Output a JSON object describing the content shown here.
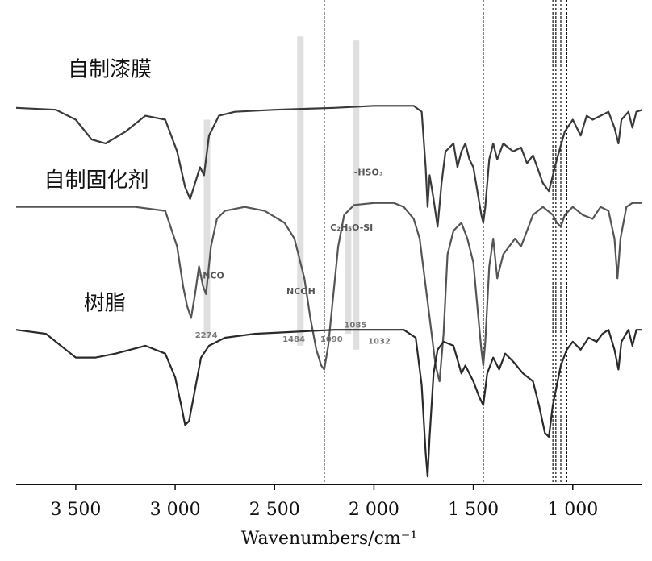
{
  "chart_data": {
    "type": "line",
    "title": "",
    "xlabel": "Wavenumbers/cm⁻¹",
    "ylabel": "",
    "xlim": [
      3800,
      650
    ],
    "x_reversed": true,
    "y_axis_visible": false,
    "grid": false,
    "legend": "inline-labels",
    "x_ticks": [
      {
        "value": 3500,
        "label": "3 500"
      },
      {
        "value": 3000,
        "label": "3 000"
      },
      {
        "value": 2500,
        "label": "2 500"
      },
      {
        "value": 2000,
        "label": "2 000"
      },
      {
        "value": 1500,
        "label": "1 500"
      },
      {
        "value": 1000,
        "label": "1 000"
      }
    ],
    "series": [
      {
        "name": "自制漆膜",
        "color": "#3a3a3a",
        "points": [
          [
            3800,
            0.95
          ],
          [
            3600,
            0.945
          ],
          [
            3500,
            0.92
          ],
          [
            3420,
            0.87
          ],
          [
            3350,
            0.86
          ],
          [
            3250,
            0.89
          ],
          [
            3150,
            0.93
          ],
          [
            3050,
            0.92
          ],
          [
            2990,
            0.84
          ],
          [
            2950,
            0.75
          ],
          [
            2925,
            0.72
          ],
          [
            2900,
            0.76
          ],
          [
            2875,
            0.8
          ],
          [
            2855,
            0.78
          ],
          [
            2830,
            0.88
          ],
          [
            2780,
            0.93
          ],
          [
            2700,
            0.94
          ],
          [
            2500,
            0.945
          ],
          [
            2200,
            0.95
          ],
          [
            2000,
            0.955
          ],
          [
            1800,
            0.955
          ],
          [
            1760,
            0.94
          ],
          [
            1740,
            0.8
          ],
          [
            1730,
            0.7
          ],
          [
            1720,
            0.78
          ],
          [
            1700,
            0.72
          ],
          [
            1680,
            0.65
          ],
          [
            1660,
            0.76
          ],
          [
            1640,
            0.84
          ],
          [
            1600,
            0.86
          ],
          [
            1580,
            0.8
          ],
          [
            1560,
            0.84
          ],
          [
            1540,
            0.86
          ],
          [
            1520,
            0.82
          ],
          [
            1500,
            0.8
          ],
          [
            1460,
            0.68
          ],
          [
            1450,
            0.66
          ],
          [
            1440,
            0.7
          ],
          [
            1420,
            0.82
          ],
          [
            1400,
            0.86
          ],
          [
            1380,
            0.82
          ],
          [
            1350,
            0.86
          ],
          [
            1300,
            0.84
          ],
          [
            1260,
            0.85
          ],
          [
            1230,
            0.81
          ],
          [
            1200,
            0.83
          ],
          [
            1150,
            0.76
          ],
          [
            1120,
            0.74
          ],
          [
            1080,
            0.82
          ],
          [
            1040,
            0.89
          ],
          [
            1000,
            0.92
          ],
          [
            960,
            0.88
          ],
          [
            930,
            0.93
          ],
          [
            900,
            0.92
          ],
          [
            860,
            0.93
          ],
          [
            820,
            0.94
          ],
          [
            790,
            0.9
          ],
          [
            770,
            0.86
          ],
          [
            755,
            0.92
          ],
          [
            720,
            0.94
          ],
          [
            700,
            0.9
          ],
          [
            680,
            0.94
          ],
          [
            650,
            0.945
          ]
        ]
      },
      {
        "name": "自制固化剂",
        "color": "#555555",
        "points": [
          [
            3800,
            0.7
          ],
          [
            3500,
            0.7
          ],
          [
            3200,
            0.7
          ],
          [
            3050,
            0.69
          ],
          [
            2990,
            0.6
          ],
          [
            2960,
            0.5
          ],
          [
            2940,
            0.45
          ],
          [
            2920,
            0.42
          ],
          [
            2900,
            0.48
          ],
          [
            2880,
            0.55
          ],
          [
            2860,
            0.5
          ],
          [
            2845,
            0.48
          ],
          [
            2820,
            0.6
          ],
          [
            2790,
            0.67
          ],
          [
            2750,
            0.69
          ],
          [
            2650,
            0.7
          ],
          [
            2550,
            0.69
          ],
          [
            2450,
            0.66
          ],
          [
            2400,
            0.62
          ],
          [
            2350,
            0.52
          ],
          [
            2320,
            0.42
          ],
          [
            2290,
            0.34
          ],
          [
            2265,
            0.3
          ],
          [
            2250,
            0.29
          ],
          [
            2230,
            0.35
          ],
          [
            2210,
            0.45
          ],
          [
            2180,
            0.6
          ],
          [
            2150,
            0.68
          ],
          [
            2100,
            0.705
          ],
          [
            2000,
            0.71
          ],
          [
            1900,
            0.71
          ],
          [
            1850,
            0.7
          ],
          [
            1800,
            0.67
          ],
          [
            1770,
            0.62
          ],
          [
            1740,
            0.5
          ],
          [
            1710,
            0.38
          ],
          [
            1690,
            0.3
          ],
          [
            1670,
            0.26
          ],
          [
            1650,
            0.38
          ],
          [
            1630,
            0.58
          ],
          [
            1600,
            0.64
          ],
          [
            1560,
            0.66
          ],
          [
            1530,
            0.62
          ],
          [
            1500,
            0.56
          ],
          [
            1480,
            0.45
          ],
          [
            1460,
            0.34
          ],
          [
            1450,
            0.3
          ],
          [
            1440,
            0.36
          ],
          [
            1420,
            0.55
          ],
          [
            1400,
            0.62
          ],
          [
            1380,
            0.52
          ],
          [
            1350,
            0.58
          ],
          [
            1320,
            0.6
          ],
          [
            1290,
            0.62
          ],
          [
            1260,
            0.6
          ],
          [
            1200,
            0.68
          ],
          [
            1150,
            0.7
          ],
          [
            1100,
            0.68
          ],
          [
            1080,
            0.66
          ],
          [
            1060,
            0.65
          ],
          [
            1040,
            0.68
          ],
          [
            1000,
            0.7
          ],
          [
            950,
            0.68
          ],
          [
            900,
            0.67
          ],
          [
            860,
            0.7
          ],
          [
            820,
            0.69
          ],
          [
            790,
            0.62
          ],
          [
            775,
            0.52
          ],
          [
            760,
            0.62
          ],
          [
            730,
            0.7
          ],
          [
            700,
            0.71
          ],
          [
            650,
            0.71
          ]
        ]
      },
      {
        "name": "树脂",
        "color": "#2a2a2a",
        "points": [
          [
            3800,
            0.39
          ],
          [
            3650,
            0.38
          ],
          [
            3550,
            0.34
          ],
          [
            3500,
            0.32
          ],
          [
            3400,
            0.32
          ],
          [
            3300,
            0.33
          ],
          [
            3150,
            0.35
          ],
          [
            3050,
            0.33
          ],
          [
            3000,
            0.27
          ],
          [
            2970,
            0.2
          ],
          [
            2950,
            0.15
          ],
          [
            2930,
            0.16
          ],
          [
            2900,
            0.24
          ],
          [
            2870,
            0.32
          ],
          [
            2830,
            0.35
          ],
          [
            2750,
            0.37
          ],
          [
            2600,
            0.38
          ],
          [
            2400,
            0.385
          ],
          [
            2200,
            0.39
          ],
          [
            2000,
            0.39
          ],
          [
            1850,
            0.39
          ],
          [
            1790,
            0.37
          ],
          [
            1760,
            0.25
          ],
          [
            1740,
            0.08
          ],
          [
            1730,
            0.02
          ],
          [
            1720,
            0.12
          ],
          [
            1700,
            0.28
          ],
          [
            1680,
            0.34
          ],
          [
            1650,
            0.36
          ],
          [
            1600,
            0.35
          ],
          [
            1560,
            0.28
          ],
          [
            1540,
            0.3
          ],
          [
            1500,
            0.26
          ],
          [
            1470,
            0.22
          ],
          [
            1450,
            0.2
          ],
          [
            1430,
            0.28
          ],
          [
            1400,
            0.32
          ],
          [
            1370,
            0.29
          ],
          [
            1340,
            0.33
          ],
          [
            1300,
            0.31
          ],
          [
            1250,
            0.28
          ],
          [
            1200,
            0.26
          ],
          [
            1170,
            0.2
          ],
          [
            1140,
            0.13
          ],
          [
            1120,
            0.12
          ],
          [
            1100,
            0.2
          ],
          [
            1060,
            0.3
          ],
          [
            1030,
            0.34
          ],
          [
            1000,
            0.36
          ],
          [
            960,
            0.34
          ],
          [
            920,
            0.37
          ],
          [
            880,
            0.36
          ],
          [
            850,
            0.38
          ],
          [
            820,
            0.39
          ],
          [
            790,
            0.34
          ],
          [
            770,
            0.29
          ],
          [
            755,
            0.36
          ],
          [
            720,
            0.39
          ],
          [
            700,
            0.35
          ],
          [
            680,
            0.39
          ],
          [
            650,
            0.39
          ]
        ]
      }
    ],
    "series_labels": [
      {
        "text": "自制漆膜",
        "x": 3540,
        "y": 1.03
      },
      {
        "text": "自制固化剂",
        "x": 3660,
        "y": 0.75
      },
      {
        "text": "树脂",
        "x": 3460,
        "y": 0.44
      }
    ],
    "reference_lines": [
      2250,
      1450,
      1100,
      1085,
      1060,
      1030
    ],
    "highlight_bands": [
      {
        "x": 2840,
        "y_top": 0.92,
        "y_bottom": 0.37
      },
      {
        "x": 2370,
        "y_top": 1.13,
        "y_bottom": 0.35
      },
      {
        "x": 2130,
        "y_top": 0.65,
        "y_bottom": 0.38
      },
      {
        "x": 2090,
        "y_top": 1.12,
        "y_bottom": 0.34
      }
    ],
    "annotations": [
      {
        "text": "-NCO",
        "x": 2880,
        "y": 0.52,
        "style": "bold"
      },
      {
        "text": "NCOH",
        "x": 2440,
        "y": 0.48,
        "style": "bold"
      },
      {
        "text": "C₂H₅O-SI",
        "x": 2220,
        "y": 0.64,
        "style": "bold"
      },
      {
        "text": "-HSO₃",
        "x": 2100,
        "y": 0.78,
        "style": "bold"
      },
      {
        "text": "2274",
        "x": 2900,
        "y": 0.37,
        "style": "small"
      },
      {
        "text": "1484",
        "x": 2460,
        "y": 0.36,
        "style": "small"
      },
      {
        "text": "1090",
        "x": 2270,
        "y": 0.36,
        "style": "small"
      },
      {
        "text": "1085",
        "x": 2150,
        "y": 0.395,
        "style": "small"
      },
      {
        "text": "1032",
        "x": 2030,
        "y": 0.355,
        "style": "small"
      }
    ]
  }
}
